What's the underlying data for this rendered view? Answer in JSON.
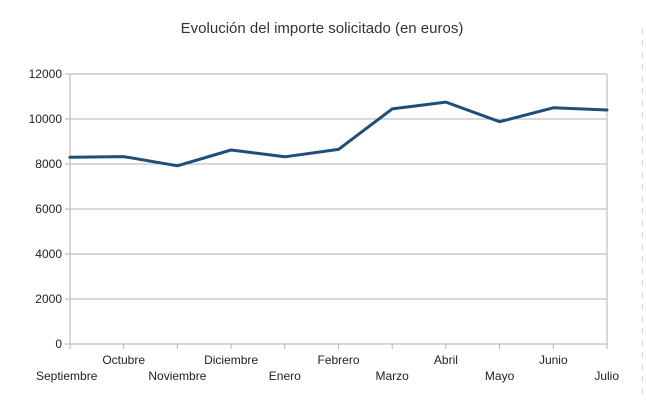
{
  "chart_data": {
    "type": "line",
    "title": "Evolución del importe solicitado (en euros)",
    "xlabel": "",
    "ylabel": "",
    "categories": [
      "Septiembre",
      "Octubre",
      "Noviembre",
      "Diciembre",
      "Enero",
      "Febrero",
      "Marzo",
      "Abril",
      "Mayo",
      "Junio",
      "Julio"
    ],
    "series": [
      {
        "values": [
          8300,
          8330,
          7920,
          8620,
          8320,
          8650,
          10450,
          10750,
          9880,
          10500,
          10400
        ],
        "color": "#1f4e79"
      }
    ],
    "ylim": [
      0,
      12000
    ],
    "yticks": [
      0,
      2000,
      4000,
      6000,
      8000,
      10000,
      12000
    ],
    "grid": true,
    "legend": "none"
  }
}
